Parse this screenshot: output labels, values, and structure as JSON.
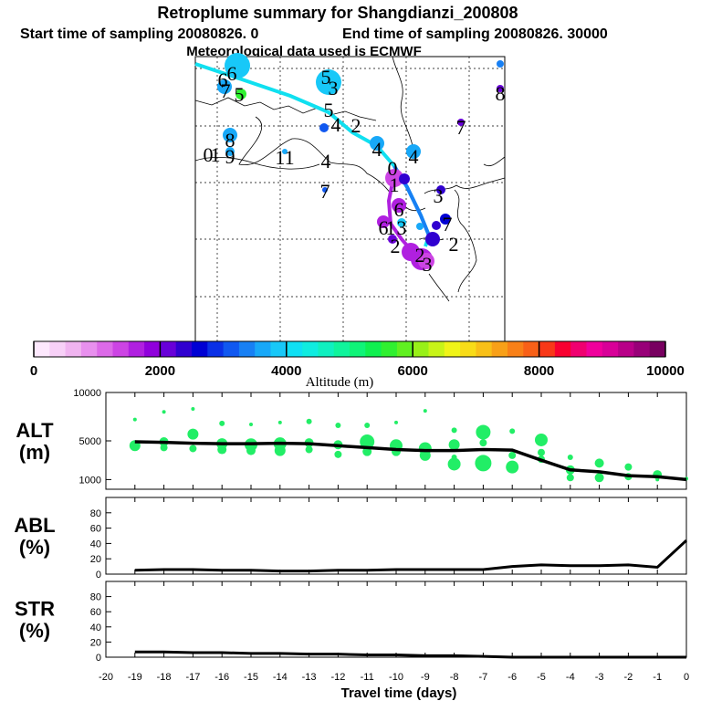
{
  "title": "Retroplume summary for Shangdianzi_200808",
  "subtitle_start": "Start time of sampling 20080826.    0",
  "subtitle_end": "End time of sampling 20080826. 30000",
  "met_line": "Meteorological data used is ECMWF",
  "colorbar": {
    "label": "Altitude  (m)",
    "ticks": [
      "0",
      "2000",
      "4000",
      "6000",
      "8000",
      "10000"
    ],
    "colors": [
      "#fde8fd",
      "#f7d0f7",
      "#f0b4f0",
      "#e890ee",
      "#dc6ae8",
      "#cc44e4",
      "#b020e0",
      "#9000dc",
      "#6800d8",
      "#3000d0",
      "#0000d4",
      "#0a30e6",
      "#1058f0",
      "#1880f4",
      "#18a8f8",
      "#18c8f8",
      "#10e0f4",
      "#10ece0",
      "#10f0c0",
      "#10f49c",
      "#10f478",
      "#10f050",
      "#30f030",
      "#60f020",
      "#98f018",
      "#c8f418",
      "#f0f418",
      "#f8dc18",
      "#f8c018",
      "#f8a018",
      "#f88018",
      "#f86018",
      "#f83818",
      "#f80030",
      "#f00070",
      "#f0009c",
      "#d80098",
      "#b80088",
      "#980078",
      "#780060"
    ]
  },
  "map": {
    "cyan_labels": [
      "6",
      "6",
      "7",
      "5",
      "5",
      "3",
      "5",
      "4",
      "2",
      "4",
      "4",
      "8",
      "9",
      "0",
      "1",
      "11",
      "4",
      "7"
    ],
    "purple_labels": [
      "1",
      "0",
      "6",
      "3",
      "6",
      "3",
      "1",
      "2",
      "2",
      "2",
      "3",
      "7",
      "7",
      "8"
    ]
  },
  "chart_data": [
    {
      "type": "scatter",
      "name": "ALT",
      "ylabel_line1": "ALT",
      "ylabel_line2": "(m)",
      "ylim": [
        0,
        10000
      ],
      "yticks": [
        "1000",
        "5000",
        "10000"
      ],
      "ytick_values": [
        1000,
        5000,
        10000
      ],
      "series": [
        {
          "name": "median altitude",
          "x": [
            -19,
            -18,
            -17,
            -16,
            -15,
            -14,
            -13,
            -12,
            -11,
            -10,
            -9,
            -8,
            -7,
            -6,
            -5,
            -4,
            -3,
            -2,
            -1,
            0
          ],
          "values": [
            4900,
            4850,
            4750,
            4700,
            4700,
            4750,
            4700,
            4500,
            4300,
            4100,
            4000,
            4000,
            4100,
            4050,
            3000,
            2000,
            1800,
            1400,
            1300,
            1000
          ]
        },
        {
          "name": "particle clusters",
          "points": [
            [
              -19,
              7200
            ],
            [
              -19,
              4500
            ],
            [
              -18,
              8000
            ],
            [
              -18,
              4900
            ],
            [
              -18,
              4300
            ],
            [
              -17,
              8300
            ],
            [
              -17,
              5700
            ],
            [
              -17,
              4200
            ],
            [
              -16,
              6800
            ],
            [
              -16,
              4700
            ],
            [
              -16,
              4100
            ],
            [
              -15,
              6700
            ],
            [
              -15,
              4600
            ],
            [
              -15,
              4000
            ],
            [
              -14,
              6900
            ],
            [
              -14,
              4700
            ],
            [
              -14,
              4000
            ],
            [
              -13,
              7000
            ],
            [
              -13,
              4800
            ],
            [
              -13,
              4100
            ],
            [
              -12,
              6600
            ],
            [
              -12,
              4600
            ],
            [
              -12,
              3600
            ],
            [
              -11,
              6600
            ],
            [
              -11,
              4900
            ],
            [
              -11,
              3900
            ],
            [
              -10,
              6900
            ],
            [
              -10,
              4500
            ],
            [
              -10,
              3900
            ],
            [
              -9,
              8100
            ],
            [
              -9,
              4200
            ],
            [
              -9,
              3500
            ],
            [
              -8,
              6100
            ],
            [
              -8,
              4600
            ],
            [
              -8,
              3300
            ],
            [
              -8,
              2600
            ],
            [
              -7,
              5900
            ],
            [
              -7,
              4800
            ],
            [
              -7,
              3300
            ],
            [
              -7,
              2700
            ],
            [
              -6,
              6000
            ],
            [
              -6,
              3500
            ],
            [
              -6,
              2300
            ],
            [
              -5,
              5100
            ],
            [
              -5,
              3800
            ],
            [
              -5,
              3100
            ],
            [
              -4,
              3300
            ],
            [
              -4,
              2000
            ],
            [
              -4,
              1200
            ],
            [
              -3,
              2700
            ],
            [
              -3,
              1200
            ],
            [
              -2,
              2300
            ],
            [
              -2,
              1300
            ],
            [
              -1,
              1500
            ],
            [
              -1,
              1000
            ],
            [
              0,
              1100
            ]
          ]
        }
      ]
    },
    {
      "type": "line",
      "name": "ABL",
      "ylabel_line1": "ABL",
      "ylabel_line2": "(%)",
      "ylim": [
        0,
        100
      ],
      "yticks": [
        "0",
        "20",
        "40",
        "60",
        "80"
      ],
      "ytick_values": [
        0,
        20,
        40,
        60,
        80
      ],
      "x": [
        -19,
        -18,
        -17,
        -16,
        -15,
        -14,
        -13,
        -12,
        -11,
        -10,
        -9,
        -8,
        -7,
        -6,
        -5,
        -4,
        -3,
        -2,
        -1,
        0
      ],
      "values": [
        5,
        6,
        6,
        5,
        5,
        4,
        4,
        5,
        5,
        6,
        6,
        6,
        6,
        10,
        12,
        11,
        11,
        12,
        9,
        44
      ]
    },
    {
      "type": "line",
      "name": "STR",
      "ylabel_line1": "STR",
      "ylabel_line2": "(%)",
      "ylim": [
        0,
        100
      ],
      "yticks": [
        "0",
        "20",
        "40",
        "60",
        "80"
      ],
      "ytick_values": [
        0,
        20,
        40,
        60,
        80
      ],
      "x": [
        -19,
        -18,
        -17,
        -16,
        -15,
        -14,
        -13,
        -12,
        -11,
        -10,
        -9,
        -8,
        -7,
        -6,
        -5,
        -4,
        -3,
        -2,
        -1,
        0
      ],
      "values": [
        7,
        7,
        6,
        6,
        5,
        5,
        4,
        4,
        3,
        3,
        2,
        2,
        1,
        0,
        0,
        0,
        0,
        0,
        0,
        0
      ]
    }
  ],
  "x_axis": {
    "label": "Travel time (days)",
    "ticks": [
      "-20",
      "-19",
      "-18",
      "-17",
      "-16",
      "-15",
      "-14",
      "-13",
      "-12",
      "-11",
      "-10",
      "-9",
      "-8",
      "-7",
      "-6",
      "-5",
      "-4",
      "-3",
      "-2",
      "-1",
      "0"
    ],
    "tick_values": [
      -20,
      -19,
      -18,
      -17,
      -16,
      -15,
      -14,
      -13,
      -12,
      -11,
      -10,
      -9,
      -8,
      -7,
      -6,
      -5,
      -4,
      -3,
      -2,
      -1,
      0
    ]
  },
  "colors": {
    "cluster": "#22ee66",
    "line": "#000000",
    "cyan_track": "#10e0f0",
    "blue_track": "#1880f4",
    "purple_track": "#b020e0"
  }
}
